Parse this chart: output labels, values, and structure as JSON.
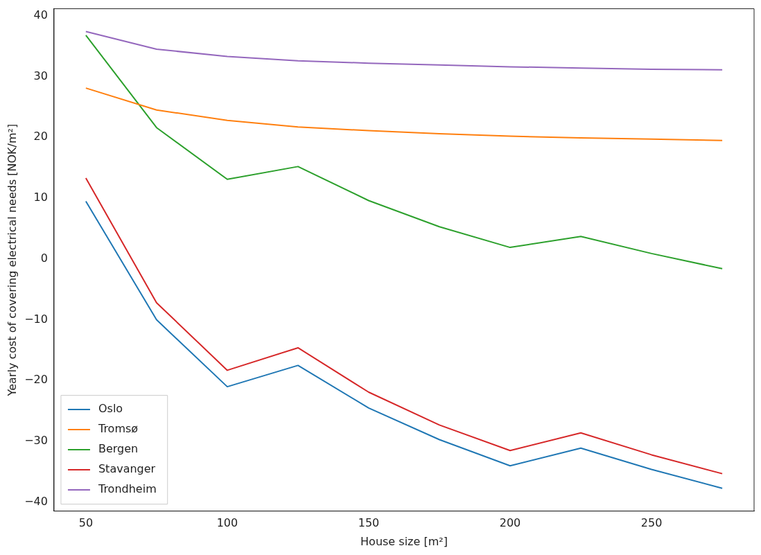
{
  "chart_data": {
    "type": "line",
    "xlabel": "House size [m²]",
    "ylabel": "Yearly cost of covering electrical needs [NOK/m²]",
    "x": [
      50,
      75,
      100,
      125,
      150,
      175,
      200,
      225,
      250,
      275
    ],
    "xlim": [
      38.75,
      286.25
    ],
    "xticks": [
      50,
      100,
      150,
      200,
      250
    ],
    "ylim": [
      -41.45,
      41.15
    ],
    "yticks": [
      -40,
      -30,
      -20,
      -10,
      0,
      10,
      20,
      30,
      40
    ],
    "grid": false,
    "legend": "bottom left",
    "marker": "none",
    "line_style": "solid",
    "series": [
      {
        "name": "Oslo",
        "color": "#1f77b4",
        "values": [
          9.5,
          -10.0,
          -21.0,
          -17.5,
          -24.5,
          -29.7,
          -34.0,
          -31.1,
          -34.6,
          -37.7
        ]
      },
      {
        "name": "Tromsø",
        "color": "#ff7f0e",
        "values": [
          28.1,
          24.5,
          22.8,
          21.7,
          21.1,
          20.6,
          20.2,
          19.9,
          19.7,
          19.5
        ]
      },
      {
        "name": "Bergen",
        "color": "#2ca02c",
        "values": [
          36.8,
          21.6,
          13.1,
          15.2,
          9.6,
          5.3,
          1.9,
          3.7,
          0.9,
          -1.6
        ]
      },
      {
        "name": "Stavanger",
        "color": "#d62728",
        "values": [
          13.3,
          -7.2,
          -18.3,
          -14.6,
          -21.9,
          -27.3,
          -31.5,
          -28.6,
          -32.2,
          -35.3
        ]
      },
      {
        "name": "Trondheim",
        "color": "#9467bd",
        "values": [
          37.4,
          34.5,
          33.3,
          32.6,
          32.2,
          31.9,
          31.6,
          31.4,
          31.2,
          31.1
        ]
      }
    ]
  }
}
